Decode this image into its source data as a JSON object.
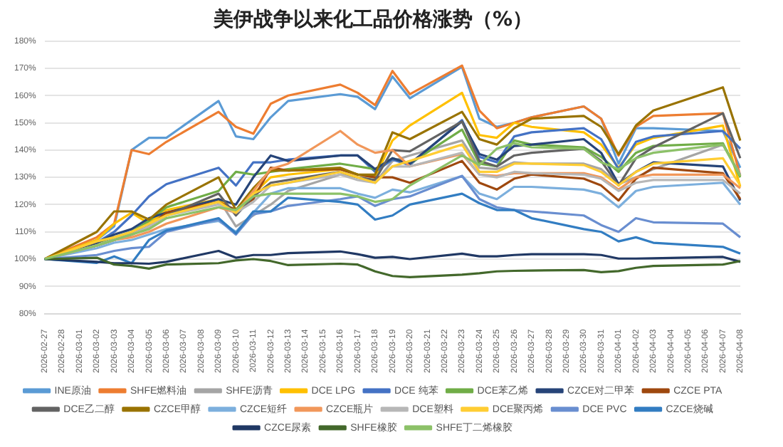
{
  "chart_data": {
    "type": "line",
    "title": "美伊战争以来化工品价格涨势（%）",
    "categories": [
      "2026-02-27",
      "2026-02-28",
      "2026-03-01",
      "2026-03-02",
      "2026-03-03",
      "2026-03-04",
      "2026-03-05",
      "2026-03-06",
      "2026-03-07",
      "2026-03-08",
      "2026-03-09",
      "2026-03-10",
      "2026-03-11",
      "2026-03-12",
      "2026-03-13",
      "2026-03-14",
      "2026-03-15",
      "2026-03-16",
      "2026-03-17",
      "2026-03-18",
      "2026-03-19",
      "2026-03-20",
      "2026-03-21",
      "2026-03-22",
      "2026-03-23",
      "2026-03-24",
      "2026-03-25",
      "2026-03-26",
      "2026-03-27",
      "2026-03-28",
      "2026-03-29",
      "2026-03-30",
      "2026-03-31",
      "2026-04-01",
      "2026-04-02",
      "2026-04-03",
      "2026-04-04",
      "2026-04-05",
      "2026-04-06",
      "2026-04-07",
      "2026-04-08"
    ],
    "ylim": [
      80,
      180
    ],
    "yticks": [
      {
        "value": 80,
        "label": "80%"
      },
      {
        "value": 90,
        "label": "90%"
      },
      {
        "value": 100,
        "label": "100%"
      },
      {
        "value": 110,
        "label": "110%"
      },
      {
        "value": 120,
        "label": "120%"
      },
      {
        "value": 130,
        "label": "130%"
      },
      {
        "value": 140,
        "label": "140%"
      },
      {
        "value": 150,
        "label": "150%"
      },
      {
        "value": 160,
        "label": "160%"
      },
      {
        "value": 170,
        "label": "170%"
      },
      {
        "value": 180,
        "label": "180%"
      }
    ],
    "grid": "y",
    "legend": "bottom",
    "marker": "none",
    "line_style": "solid",
    "series": [
      {
        "name": "INE原油",
        "color": "#5b9bd5",
        "values": [
          100,
          null,
          null,
          107,
          112,
          140,
          144.5,
          144.5,
          null,
          null,
          158,
          145,
          144,
          152,
          158,
          null,
          null,
          160.5,
          159.5,
          155,
          167,
          159,
          null,
          null,
          170.5,
          151.5,
          148.5,
          150,
          152,
          null,
          null,
          156,
          151.5,
          135,
          148,
          148,
          null,
          null,
          null,
          147,
          133.5
        ]
      },
      {
        "name": "SHFE燃料油",
        "color": "#ed7d31",
        "values": [
          100,
          null,
          null,
          108,
          113,
          140,
          138.5,
          143,
          null,
          null,
          154,
          148.5,
          146,
          157,
          160,
          null,
          null,
          164,
          161,
          156.5,
          169,
          160.5,
          null,
          null,
          171,
          154.5,
          148,
          150,
          152,
          null,
          null,
          156,
          151.5,
          138,
          148.5,
          152.5,
          null,
          null,
          null,
          153.5,
          130.5
        ]
      },
      {
        "name": "SHFE沥青",
        "color": "#a5a5a5",
        "values": [
          100,
          null,
          null,
          105,
          107,
          109,
          112,
          116,
          null,
          null,
          122,
          112,
          116,
          120,
          125,
          null,
          null,
          131,
          130,
          128,
          136,
          138,
          null,
          null,
          143.5,
          133.5,
          133,
          135.5,
          135,
          null,
          null,
          135,
          133,
          127.5,
          130,
          133,
          null,
          null,
          null,
          142,
          131
        ]
      },
      {
        "name": "DCE LPG",
        "color": "#ffc000",
        "values": [
          100,
          null,
          null,
          107,
          113,
          117,
          113,
          118,
          null,
          null,
          122,
          117,
          124,
          130,
          131,
          null,
          null,
          133,
          131,
          130,
          143.5,
          149,
          null,
          null,
          161,
          145.5,
          144.5,
          150,
          148.5,
          null,
          null,
          146.5,
          142,
          133.5,
          142,
          144.5,
          null,
          null,
          null,
          149,
          126.5
        ]
      },
      {
        "name": "DCE 纯苯",
        "color": "#4472c4",
        "values": [
          100,
          null,
          null,
          106,
          110,
          116,
          123,
          127.5,
          null,
          null,
          133.5,
          127,
          135.5,
          135.5,
          136.5,
          null,
          null,
          138,
          138,
          132,
          136.5,
          134.5,
          null,
          null,
          151,
          137.5,
          135.5,
          145,
          146.5,
          null,
          null,
          148,
          144,
          133,
          143,
          145,
          null,
          null,
          null,
          147,
          140.5
        ]
      },
      {
        "name": "DCE苯乙烯",
        "color": "#70ad47",
        "values": [
          100,
          null,
          null,
          106,
          108,
          110,
          114,
          119,
          null,
          null,
          125,
          132,
          131,
          132,
          133,
          null,
          null,
          135,
          134,
          133,
          137,
          135,
          null,
          null,
          147.5,
          135,
          134,
          143.5,
          142,
          null,
          null,
          141,
          137.5,
          132,
          139,
          141.5,
          null,
          null,
          null,
          142.5,
          130
        ]
      },
      {
        "name": "CZCE对二甲苯",
        "color": "#264478",
        "values": [
          100,
          null,
          null,
          106,
          109,
          111,
          115,
          117,
          null,
          null,
          122,
          120,
          130,
          138,
          136,
          null,
          null,
          138,
          138,
          133,
          137,
          135,
          null,
          null,
          150.5,
          138.5,
          136.5,
          141.5,
          142,
          null,
          null,
          144,
          139,
          127.5,
          132,
          135.5,
          null,
          null,
          null,
          134,
          121.5
        ]
      },
      {
        "name": "CZCE PTA",
        "color": "#9e480e",
        "values": [
          100,
          null,
          null,
          105,
          107,
          109,
          112,
          117,
          null,
          null,
          121,
          118,
          122,
          133.5,
          132.5,
          null,
          null,
          133,
          131,
          130,
          130,
          128,
          null,
          null,
          136,
          128,
          125.5,
          129.5,
          131,
          null,
          null,
          129.5,
          127,
          121.5,
          129.5,
          133.5,
          null,
          null,
          null,
          131.5,
          122
        ]
      },
      {
        "name": "DCE乙二醇",
        "color": "#636363",
        "values": [
          100,
          null,
          null,
          105,
          107,
          109,
          112,
          116,
          null,
          null,
          124,
          116,
          123,
          128,
          129,
          null,
          null,
          132,
          130,
          129,
          140,
          139.5,
          null,
          null,
          150.5,
          136,
          134,
          138,
          139,
          null,
          null,
          140.5,
          136,
          127,
          137,
          141,
          null,
          null,
          null,
          153.5,
          137
        ]
      },
      {
        "name": "CZCE甲醇",
        "color": "#997300",
        "values": [
          100,
          null,
          null,
          110,
          117.5,
          117.5,
          114.5,
          120,
          null,
          null,
          130,
          118,
          126,
          132.5,
          132.5,
          null,
          null,
          133.5,
          131,
          131,
          146.5,
          144,
          null,
          null,
          154,
          144,
          142,
          148,
          151.5,
          null,
          null,
          152.5,
          148.5,
          138.5,
          149,
          154.5,
          null,
          null,
          null,
          163,
          143.5
        ]
      },
      {
        "name": "CZCE短纤",
        "color": "#7cafdd",
        "values": [
          100,
          null,
          null,
          104,
          106,
          107,
          109,
          111,
          null,
          null,
          114,
          110,
          117,
          124,
          126,
          null,
          null,
          126,
          124,
          122.5,
          125.5,
          124.5,
          null,
          null,
          130.5,
          124,
          122,
          126.5,
          126.5,
          null,
          null,
          125.5,
          124,
          119,
          125,
          126.5,
          null,
          null,
          null,
          128,
          120
        ]
      },
      {
        "name": "CZCE瓶片",
        "color": "#f1975a",
        "values": [
          100,
          null,
          null,
          105,
          107,
          108,
          110,
          113,
          null,
          null,
          119,
          117,
          125,
          133,
          135,
          null,
          null,
          147,
          142,
          139,
          140,
          134,
          null,
          null,
          138.5,
          131,
          130.5,
          131.5,
          131.5,
          null,
          null,
          131.5,
          130,
          125.5,
          130,
          131,
          null,
          null,
          null,
          131,
          126
        ]
      },
      {
        "name": "DCE塑料",
        "color": "#b7b7b7",
        "values": [
          100,
          null,
          null,
          105,
          107,
          109,
          112,
          116,
          null,
          null,
          120,
          117,
          121,
          127,
          128,
          null,
          null,
          131,
          129,
          128,
          134,
          134,
          null,
          null,
          139,
          131,
          130,
          132,
          131.5,
          null,
          null,
          131,
          129.5,
          125,
          128,
          129,
          null,
          null,
          null,
          129,
          124
        ]
      },
      {
        "name": "DCE聚丙烯",
        "color": "#ffcd33",
        "values": [
          100,
          null,
          null,
          106.5,
          108,
          110,
          113,
          116,
          null,
          null,
          121,
          117,
          124,
          127,
          128,
          null,
          null,
          132,
          130,
          128,
          134,
          136,
          null,
          null,
          142,
          132,
          132,
          135,
          135,
          null,
          null,
          134.5,
          132,
          127,
          132,
          135,
          null,
          null,
          null,
          137,
          127
        ]
      },
      {
        "name": "DCE PVC",
        "color": "#698ed0",
        "values": [
          100,
          null,
          null,
          101.5,
          103,
          104,
          104.5,
          110,
          null,
          null,
          114.5,
          109,
          116.5,
          117.5,
          119.5,
          null,
          null,
          122,
          123,
          119.5,
          122,
          123,
          null,
          null,
          130.5,
          122,
          119,
          118,
          117.5,
          null,
          null,
          116,
          112.5,
          110,
          115,
          113.5,
          null,
          null,
          null,
          113,
          108
        ]
      },
      {
        "name": "CZCE烧碱",
        "color": "#327dc2",
        "values": [
          100,
          null,
          null,
          98.6,
          101,
          98.5,
          107,
          110.5,
          null,
          null,
          115,
          109.5,
          117.5,
          117.5,
          122.5,
          null,
          null,
          121,
          120,
          114.5,
          116,
          120,
          null,
          null,
          124,
          120.5,
          118,
          118,
          115,
          null,
          null,
          111,
          110,
          106.5,
          108,
          106,
          null,
          null,
          null,
          104.5,
          102
        ]
      },
      {
        "name": "CZCE尿素",
        "color": "#203864",
        "values": [
          100,
          null,
          null,
          99,
          98.5,
          98.5,
          98.3,
          99,
          null,
          null,
          103,
          100.5,
          101.5,
          101.5,
          102.2,
          null,
          null,
          102.8,
          101.8,
          100.5,
          100.8,
          100,
          null,
          null,
          102,
          101,
          101,
          101.5,
          101.8,
          null,
          null,
          101.8,
          101.5,
          100.2,
          100.2,
          100.3,
          null,
          null,
          null,
          100.8,
          99
        ]
      },
      {
        "name": "SHFE橡胶",
        "color": "#43682b",
        "values": [
          100,
          null,
          null,
          100.5,
          98,
          97.5,
          96.5,
          98,
          null,
          null,
          98.5,
          99.5,
          100,
          99.3,
          97.8,
          null,
          null,
          98.3,
          98,
          95.5,
          93.8,
          93.4,
          null,
          null,
          94.3,
          94.8,
          95.5,
          95.7,
          95.8,
          null,
          null,
          96,
          95.2,
          95.6,
          96.8,
          97.5,
          null,
          null,
          null,
          98,
          99.3
        ]
      },
      {
        "name": "SHFE丁二烯橡胶",
        "color": "#8cc168",
        "values": [
          100,
          null,
          null,
          105,
          107,
          109,
          111,
          115,
          null,
          null,
          119,
          118,
          123,
          124,
          124,
          null,
          null,
          124,
          123,
          121,
          122,
          127,
          null,
          null,
          138,
          134.5,
          140.5,
          142.5,
          141,
          null,
          null,
          140.5,
          135.5,
          133,
          137,
          139,
          null,
          null,
          null,
          142,
          130.5
        ]
      }
    ]
  }
}
